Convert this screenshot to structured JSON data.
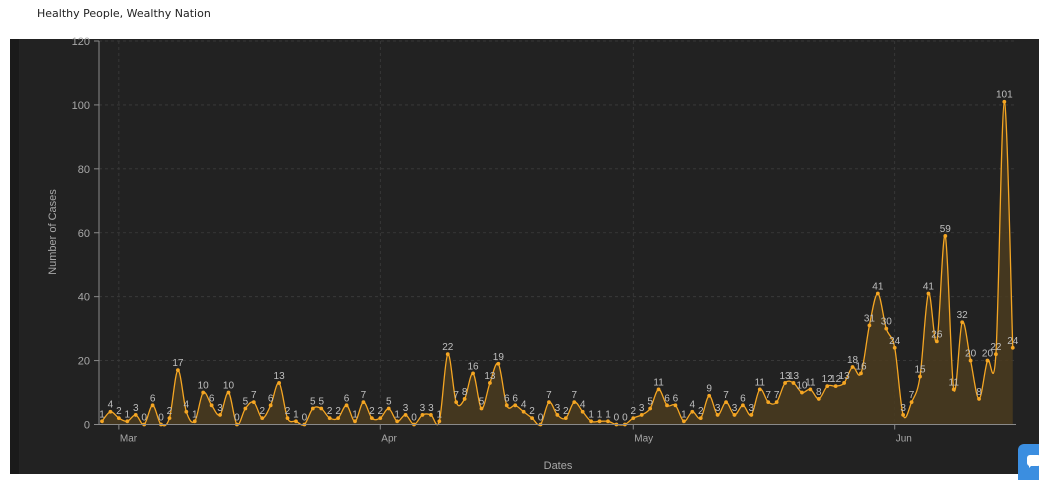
{
  "header": {
    "tagline": "Healthy People, Wealthy Nation"
  },
  "colors": {
    "panel_bg": "#222222",
    "series_line": "#f5a623",
    "series_fill": "#4a3b1e",
    "grid": "#3c3c3c",
    "axis_text": "#a8a8a8",
    "label_text": "#bfbfbf"
  },
  "chat_widget": {
    "icon": "chat-bubble-icon"
  },
  "chart_data": {
    "type": "area",
    "title": "",
    "xlabel": "Dates",
    "ylabel": "Number of Cases",
    "ylim": [
      0,
      120
    ],
    "yticks": [
      0,
      20,
      40,
      60,
      80,
      100,
      120
    ],
    "xticks": [
      {
        "label": "Mar",
        "date": "2020-03-01"
      },
      {
        "label": "Apr",
        "date": "2020-04-01"
      },
      {
        "label": "May",
        "date": "2020-05-01"
      },
      {
        "label": "Jun",
        "date": "2020-06-01"
      }
    ],
    "grid": true,
    "series": [
      {
        "start_date": "2020-02-28",
        "values": [
          1,
          4,
          2,
          1,
          3,
          0,
          6,
          0,
          2,
          17,
          4,
          1,
          10,
          6,
          3,
          10,
          0,
          5,
          7,
          2,
          6,
          13,
          2,
          1,
          0,
          5,
          5,
          2,
          2,
          6,
          1,
          7,
          2,
          2,
          5,
          1,
          3,
          0,
          3,
          3,
          1,
          22,
          7,
          8,
          16,
          5,
          13,
          19,
          6,
          6,
          4,
          2,
          0,
          7,
          3,
          2,
          7,
          4,
          1,
          1,
          1,
          0,
          0,
          2,
          3,
          5,
          11,
          6,
          6,
          1,
          4,
          2,
          9,
          3,
          7,
          3,
          6,
          3,
          11,
          7,
          7,
          13,
          13,
          10,
          11,
          8,
          12,
          12,
          13,
          18,
          16,
          31,
          41,
          30,
          24,
          3,
          7,
          15,
          41,
          26,
          59,
          11,
          32,
          20,
          8,
          20,
          22,
          101,
          24
        ]
      }
    ]
  }
}
